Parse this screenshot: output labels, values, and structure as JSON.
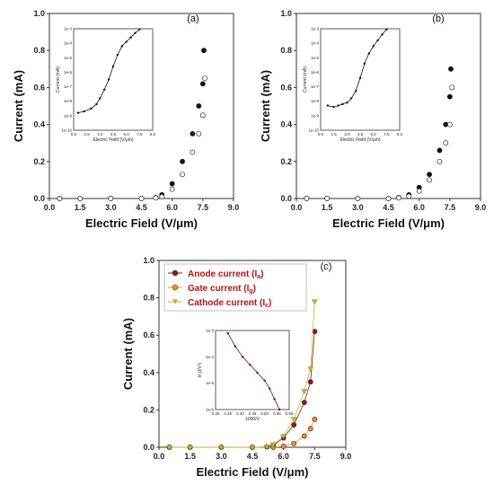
{
  "chart_data": [
    {
      "panel": "(a)",
      "type": "scatter",
      "xlabel": "Electric Field (V/μm)",
      "ylabel": "Current (mA)",
      "xlim": [
        0,
        9
      ],
      "ylim": [
        0,
        1
      ],
      "xticks": [
        "0.0",
        "1.5",
        "3.0",
        "4.5",
        "6.0",
        "7.5",
        "9.0"
      ],
      "yticks": [
        "0.0",
        "0.2",
        "0.4",
        "0.6",
        "0.8",
        "1.0"
      ],
      "series": [
        {
          "values": [
            [
              0.5,
              0
            ],
            [
              1.5,
              0
            ],
            [
              3,
              0
            ],
            [
              4.5,
              0
            ],
            [
              5.2,
              0.005
            ],
            [
              5.5,
              0.02
            ],
            [
              6,
              0.08
            ],
            [
              6.5,
              0.2
            ],
            [
              7,
              0.35
            ],
            [
              7.3,
              0.5
            ],
            [
              7.5,
              0.62
            ],
            [
              7.55,
              0.8
            ]
          ]
        },
        {
          "values": [
            [
              0.5,
              0
            ],
            [
              1.5,
              0
            ],
            [
              3,
              0
            ],
            [
              4.5,
              0
            ],
            [
              5.2,
              0.003
            ],
            [
              5.5,
              0.01
            ],
            [
              6,
              0.05
            ],
            [
              6.5,
              0.13
            ],
            [
              7,
              0.25
            ],
            [
              7.3,
              0.35
            ],
            [
              7.5,
              0.45
            ],
            [
              7.6,
              0.65
            ]
          ]
        }
      ],
      "inset": {
        "xlabel": "Electric Field (V/μm)",
        "ylabel": "Current (mA)",
        "xticks": [
          "0.0",
          "1.5",
          "3.0",
          "4.5",
          "6.0",
          "7.5",
          "9.0"
        ],
        "yticks": [
          "1e-10",
          "1e-9",
          "1e-8",
          "1e-7",
          "1e-6",
          "1e-5",
          "1e-4",
          "1e-3"
        ],
        "log_y": true,
        "values": [
          [
            0.5,
            -8.8
          ],
          [
            1.2,
            -8.7
          ],
          [
            2,
            -8.5
          ],
          [
            2.6,
            -8.2
          ],
          [
            3,
            -7.8
          ],
          [
            3.5,
            -7.2
          ],
          [
            4,
            -6.5
          ],
          [
            4.5,
            -5.6
          ],
          [
            5,
            -4.8
          ],
          [
            5.5,
            -4.2
          ],
          [
            6,
            -3.9
          ],
          [
            6.5,
            -3.6
          ],
          [
            7,
            -3.3
          ],
          [
            7.5,
            -3.05
          ]
        ]
      }
    },
    {
      "panel": "(b)",
      "type": "scatter",
      "xlabel": "Electric Field (V/μm)",
      "ylabel": "Current (mA)",
      "xlim": [
        0,
        9
      ],
      "ylim": [
        0,
        1
      ],
      "xticks": [
        "0.0",
        "1.5",
        "3.0",
        "4.5",
        "6.0",
        "7.5",
        "9.0"
      ],
      "yticks": [
        "0.0",
        "0.2",
        "0.4",
        "0.6",
        "0.8",
        "1.0"
      ],
      "series": [
        {
          "values": [
            [
              0.5,
              0
            ],
            [
              1.5,
              0
            ],
            [
              3,
              0
            ],
            [
              4.5,
              0
            ],
            [
              5,
              0.005
            ],
            [
              5.5,
              0.02
            ],
            [
              6,
              0.06
            ],
            [
              6.5,
              0.13
            ],
            [
              7,
              0.26
            ],
            [
              7.3,
              0.4
            ],
            [
              7.5,
              0.55
            ],
            [
              7.55,
              0.7
            ]
          ]
        },
        {
          "values": [
            [
              0.5,
              0
            ],
            [
              1.5,
              0
            ],
            [
              3,
              0
            ],
            [
              4.5,
              0
            ],
            [
              5,
              0.003
            ],
            [
              5.5,
              0.012
            ],
            [
              6,
              0.04
            ],
            [
              6.5,
              0.1
            ],
            [
              7,
              0.2
            ],
            [
              7.3,
              0.3
            ],
            [
              7.5,
              0.4
            ],
            [
              7.6,
              0.6
            ]
          ]
        }
      ],
      "inset": {
        "xlabel": "Electric Field (V/μm)",
        "ylabel": "Current (mA)",
        "xticks": [
          "0.0",
          "1.5",
          "3.0",
          "4.5",
          "6.0",
          "7.5",
          "9.0"
        ],
        "yticks": [
          "1e-10",
          "1e-9",
          "1e-8",
          "1e-7",
          "1e-6",
          "1e-5",
          "1e-4",
          "1e-3"
        ],
        "log_y": true,
        "values": [
          [
            0.8,
            -8.3
          ],
          [
            1.5,
            -8.4
          ],
          [
            2,
            -8.3
          ],
          [
            2.5,
            -8.2
          ],
          [
            3,
            -8.1
          ],
          [
            3.5,
            -7.8
          ],
          [
            4,
            -7.3
          ],
          [
            4.5,
            -6.4
          ],
          [
            5,
            -5.4
          ],
          [
            5.5,
            -4.7
          ],
          [
            6,
            -4.2
          ],
          [
            6.5,
            -3.8
          ],
          [
            7,
            -3.4
          ],
          [
            7.5,
            -3.05
          ]
        ]
      }
    },
    {
      "panel": "(c)",
      "type": "scatter",
      "xlabel": "Electric Field (V/μm)",
      "ylabel": "Current (mA)",
      "xlim": [
        0,
        9
      ],
      "ylim": [
        0,
        1
      ],
      "xticks": [
        "0.0",
        "1.5",
        "3.0",
        "4.5",
        "6.0",
        "7.5",
        "9.0"
      ],
      "yticks": [
        "0.0",
        "0.2",
        "0.4",
        "0.6",
        "0.8",
        "1.0"
      ],
      "legend": "top-left",
      "series": [
        {
          "name": "Anode current (I",
          "sub": "a",
          "color": "#8b1a1a",
          "values": [
            [
              0.5,
              0
            ],
            [
              1.5,
              0
            ],
            [
              3,
              0
            ],
            [
              4.5,
              0
            ],
            [
              5.2,
              0.002
            ],
            [
              5.5,
              0.01
            ],
            [
              6,
              0.05
            ],
            [
              6.5,
              0.12
            ],
            [
              7,
              0.24
            ],
            [
              7.3,
              0.35
            ],
            [
              7.5,
              0.62
            ]
          ]
        },
        {
          "name": "Gate current (I",
          "sub": "g",
          "color": "#e89030",
          "values": [
            [
              0.5,
              0
            ],
            [
              1.5,
              0
            ],
            [
              3,
              0
            ],
            [
              4.5,
              0
            ],
            [
              5.5,
              0
            ],
            [
              6,
              0.005
            ],
            [
              6.5,
              0.02
            ],
            [
              7,
              0.06
            ],
            [
              7.3,
              0.1
            ],
            [
              7.5,
              0.15
            ]
          ]
        },
        {
          "name": "Cathode current (I",
          "sub": "c",
          "color": "#b8c030",
          "values": [
            [
              0.5,
              0
            ],
            [
              1.5,
              0
            ],
            [
              3,
              0
            ],
            [
              4.5,
              0
            ],
            [
              5.2,
              0.003
            ],
            [
              5.5,
              0.015
            ],
            [
              6,
              0.06
            ],
            [
              6.5,
              0.15
            ],
            [
              7,
              0.3
            ],
            [
              7.3,
              0.42
            ],
            [
              7.5,
              0.78
            ]
          ]
        }
      ],
      "inset": {
        "xlabel": "1000/V",
        "ylabel": "ln (I/V²)",
        "xticks": [
          "0.30",
          "0.35",
          "0.40",
          "0.45",
          "0.50",
          "0.55",
          "0.60"
        ],
        "yticks": [
          "1e-6",
          "1e-5",
          "1e-4",
          "1e-3"
        ],
        "log_y": true,
        "values": [
          [
            0.35,
            -3.1
          ],
          [
            0.38,
            -3.6
          ],
          [
            0.41,
            -4.0
          ],
          [
            0.44,
            -4.3
          ],
          [
            0.47,
            -4.6
          ],
          [
            0.5,
            -4.9
          ],
          [
            0.52,
            -5.2
          ],
          [
            0.54,
            -5.6
          ],
          [
            0.56,
            -6.0
          ]
        ]
      }
    }
  ]
}
